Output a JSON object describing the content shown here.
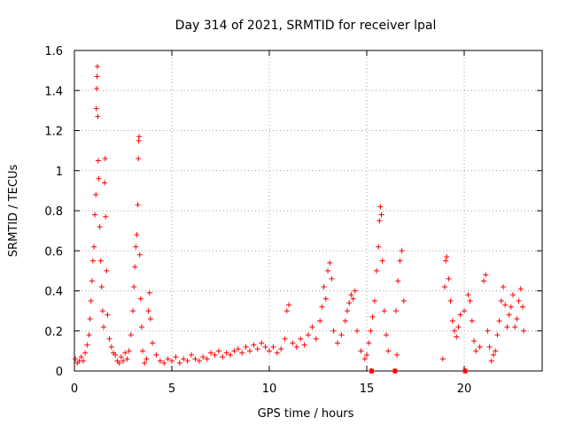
{
  "chart_data": {
    "type": "scatter",
    "title": "Day 314 of 2021, SRMTID for receiver lpal",
    "xlabel": "GPS time / hours",
    "ylabel": "SRMTID / TECUs",
    "xlim": [
      0,
      24
    ],
    "ylim": [
      0,
      1.6
    ],
    "xticks": [
      0,
      5,
      10,
      15,
      20
    ],
    "yticks": [
      0,
      0.2,
      0.4,
      0.6,
      0.8,
      1,
      1.2,
      1.4,
      1.6
    ],
    "xtick_labels": [
      "0",
      "5",
      "10",
      "15",
      "20"
    ],
    "ytick_labels": [
      "0",
      "0.2",
      "0.4",
      "0.6",
      "0.8",
      "1",
      "1.2",
      "1.4",
      "1.6"
    ],
    "grid": true,
    "marker": "plus",
    "series": [
      {
        "name": "SRMTID",
        "color": "#ff0000",
        "points": [
          [
            0.05,
            0.06
          ],
          [
            0.15,
            0.04
          ],
          [
            0.25,
            0.05
          ],
          [
            0.35,
            0.07
          ],
          [
            0.45,
            0.05
          ],
          [
            0.55,
            0.09
          ],
          [
            0.65,
            0.13
          ],
          [
            0.75,
            0.18
          ],
          [
            0.8,
            0.26
          ],
          [
            0.85,
            0.35
          ],
          [
            0.9,
            0.45
          ],
          [
            0.95,
            0.55
          ],
          [
            1.0,
            0.62
          ],
          [
            1.05,
            0.78
          ],
          [
            1.1,
            0.88
          ],
          [
            1.12,
            1.31
          ],
          [
            1.14,
            1.41
          ],
          [
            1.16,
            1.47
          ],
          [
            1.18,
            1.52
          ],
          [
            1.2,
            1.27
          ],
          [
            1.22,
            1.05
          ],
          [
            1.25,
            0.96
          ],
          [
            1.3,
            0.72
          ],
          [
            1.35,
            0.55
          ],
          [
            1.4,
            0.42
          ],
          [
            1.45,
            0.3
          ],
          [
            1.5,
            0.22
          ],
          [
            1.55,
            0.94
          ],
          [
            1.58,
            1.06
          ],
          [
            1.6,
            0.77
          ],
          [
            1.65,
            0.5
          ],
          [
            1.7,
            0.28
          ],
          [
            1.8,
            0.16
          ],
          [
            1.9,
            0.12
          ],
          [
            2.0,
            0.09
          ],
          [
            2.1,
            0.08
          ],
          [
            2.2,
            0.05
          ],
          [
            2.3,
            0.04
          ],
          [
            2.4,
            0.07
          ],
          [
            2.5,
            0.05
          ],
          [
            2.6,
            0.09
          ],
          [
            2.7,
            0.06
          ],
          [
            2.8,
            0.1
          ],
          [
            2.9,
            0.18
          ],
          [
            3.0,
            0.3
          ],
          [
            3.05,
            0.42
          ],
          [
            3.1,
            0.52
          ],
          [
            3.15,
            0.62
          ],
          [
            3.2,
            0.68
          ],
          [
            3.25,
            0.83
          ],
          [
            3.28,
            1.06
          ],
          [
            3.3,
            1.15
          ],
          [
            3.32,
            1.17
          ],
          [
            3.35,
            0.58
          ],
          [
            3.4,
            0.36
          ],
          [
            3.45,
            0.22
          ],
          [
            3.5,
            0.1
          ],
          [
            3.6,
            0.04
          ],
          [
            3.7,
            0.06
          ],
          [
            3.8,
            0.3
          ],
          [
            3.85,
            0.39
          ],
          [
            3.9,
            0.26
          ],
          [
            4.0,
            0.14
          ],
          [
            4.2,
            0.08
          ],
          [
            4.4,
            0.05
          ],
          [
            4.6,
            0.04
          ],
          [
            4.8,
            0.06
          ],
          [
            5.0,
            0.05
          ],
          [
            5.2,
            0.07
          ],
          [
            5.4,
            0.04
          ],
          [
            5.6,
            0.06
          ],
          [
            5.8,
            0.05
          ],
          [
            6.0,
            0.08
          ],
          [
            6.2,
            0.06
          ],
          [
            6.4,
            0.05
          ],
          [
            6.6,
            0.07
          ],
          [
            6.8,
            0.06
          ],
          [
            7.0,
            0.09
          ],
          [
            7.2,
            0.08
          ],
          [
            7.4,
            0.1
          ],
          [
            7.6,
            0.07
          ],
          [
            7.8,
            0.09
          ],
          [
            8.0,
            0.08
          ],
          [
            8.2,
            0.1
          ],
          [
            8.4,
            0.11
          ],
          [
            8.6,
            0.09
          ],
          [
            8.8,
            0.12
          ],
          [
            9.0,
            0.1
          ],
          [
            9.2,
            0.13
          ],
          [
            9.4,
            0.11
          ],
          [
            9.6,
            0.14
          ],
          [
            9.8,
            0.12
          ],
          [
            10.0,
            0.1
          ],
          [
            10.2,
            0.12
          ],
          [
            10.4,
            0.09
          ],
          [
            10.6,
            0.11
          ],
          [
            10.8,
            0.16
          ],
          [
            10.9,
            0.3
          ],
          [
            11.0,
            0.33
          ],
          [
            11.2,
            0.14
          ],
          [
            11.4,
            0.12
          ],
          [
            11.6,
            0.16
          ],
          [
            11.8,
            0.13
          ],
          [
            12.0,
            0.18
          ],
          [
            12.2,
            0.22
          ],
          [
            12.4,
            0.16
          ],
          [
            12.6,
            0.25
          ],
          [
            12.7,
            0.32
          ],
          [
            12.8,
            0.42
          ],
          [
            12.9,
            0.36
          ],
          [
            13.0,
            0.5
          ],
          [
            13.1,
            0.54
          ],
          [
            13.2,
            0.46
          ],
          [
            13.3,
            0.2
          ],
          [
            13.5,
            0.14
          ],
          [
            13.7,
            0.18
          ],
          [
            13.9,
            0.25
          ],
          [
            14.0,
            0.3
          ],
          [
            14.1,
            0.34
          ],
          [
            14.2,
            0.38
          ],
          [
            14.3,
            0.36
          ],
          [
            14.4,
            0.4
          ],
          [
            14.5,
            0.2
          ],
          [
            14.7,
            0.1
          ],
          [
            14.9,
            0.06
          ],
          [
            15.0,
            0.08
          ],
          [
            15.1,
            0.14
          ],
          [
            15.2,
            0.2
          ],
          [
            15.3,
            0.27
          ],
          [
            15.4,
            0.35
          ],
          [
            15.5,
            0.5
          ],
          [
            15.6,
            0.62
          ],
          [
            15.65,
            0.75
          ],
          [
            15.7,
            0.82
          ],
          [
            15.75,
            0.78
          ],
          [
            15.8,
            0.55
          ],
          [
            15.9,
            0.3
          ],
          [
            16.0,
            0.18
          ],
          [
            16.1,
            0.1
          ],
          [
            16.5,
            0.3
          ],
          [
            16.6,
            0.45
          ],
          [
            16.7,
            0.55
          ],
          [
            16.8,
            0.6
          ],
          [
            16.9,
            0.35
          ],
          [
            19.0,
            0.42
          ],
          [
            19.05,
            0.55
          ],
          [
            19.1,
            0.57
          ],
          [
            19.2,
            0.46
          ],
          [
            19.3,
            0.35
          ],
          [
            19.4,
            0.25
          ],
          [
            19.5,
            0.2
          ],
          [
            19.6,
            0.17
          ],
          [
            19.7,
            0.22
          ],
          [
            19.8,
            0.28
          ],
          [
            20.0,
            0.3
          ],
          [
            20.2,
            0.38
          ],
          [
            20.3,
            0.35
          ],
          [
            20.4,
            0.25
          ],
          [
            20.5,
            0.15
          ],
          [
            20.6,
            0.1
          ],
          [
            20.8,
            0.12
          ],
          [
            21.0,
            0.45
          ],
          [
            21.1,
            0.48
          ],
          [
            21.2,
            0.2
          ],
          [
            21.3,
            0.12
          ],
          [
            21.4,
            0.05
          ],
          [
            21.5,
            0.08
          ],
          [
            21.6,
            0.1
          ],
          [
            21.7,
            0.18
          ],
          [
            21.8,
            0.25
          ],
          [
            21.9,
            0.35
          ],
          [
            22.0,
            0.42
          ],
          [
            22.1,
            0.33
          ],
          [
            22.2,
            0.22
          ],
          [
            22.3,
            0.28
          ],
          [
            22.4,
            0.32
          ],
          [
            22.5,
            0.38
          ],
          [
            22.6,
            0.22
          ],
          [
            22.7,
            0.26
          ],
          [
            22.8,
            0.35
          ],
          [
            22.9,
            0.41
          ],
          [
            23.0,
            0.32
          ],
          [
            23.05,
            0.2
          ],
          [
            16.45,
            0.0
          ],
          [
            15.25,
            0.0
          ],
          [
            16.55,
            0.08
          ],
          [
            18.9,
            0.06
          ],
          [
            20.05,
            0.0
          ],
          [
            15.2,
            0.0
          ]
        ]
      }
    ],
    "gap_markers": [
      15.25,
      16.45,
      20.05
    ]
  }
}
